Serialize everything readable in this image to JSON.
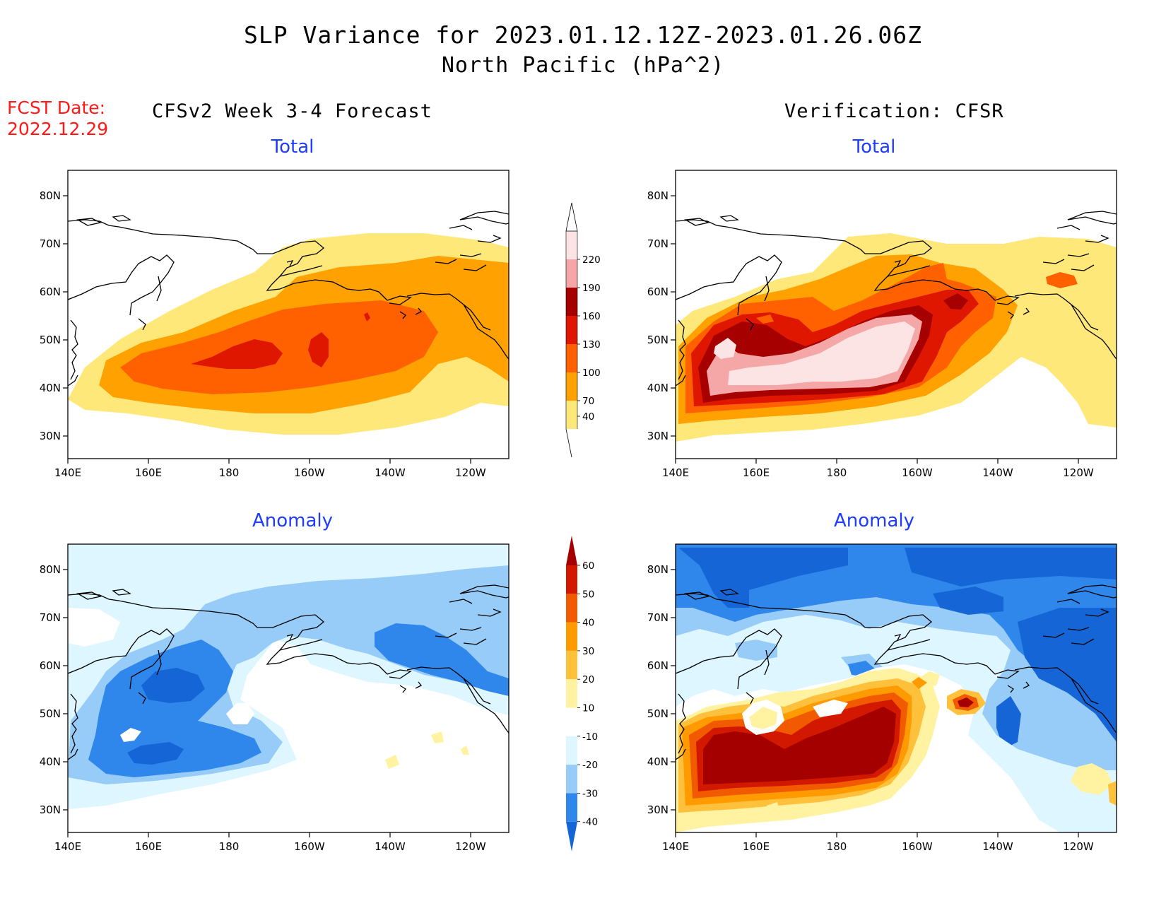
{
  "header": {
    "title": "SLP Variance for 2023.01.12.12Z-2023.01.26.06Z",
    "subtitle": "North Pacific (hPa^2)",
    "fcst_label_line1": "FCST Date:",
    "fcst_label_line2": "2022.12.29",
    "left_heading": "CFSv2 Week 3-4 Forecast",
    "right_heading": "Verification: CFSR"
  },
  "panels": [
    {
      "id": "forecast-total",
      "title": "Total"
    },
    {
      "id": "verification-total",
      "title": "Total"
    },
    {
      "id": "forecast-anomaly",
      "title": "Anomaly"
    },
    {
      "id": "verification-anomaly",
      "title": "Anomaly"
    }
  ],
  "axes": {
    "lon_labels": [
      "140E",
      "160E",
      "180",
      "160W",
      "140W",
      "120W"
    ],
    "lat_labels": [
      "80N",
      "70N",
      "60N",
      "50N",
      "40N",
      "30N"
    ]
  },
  "colorbars": {
    "total": {
      "levels": [
        "40",
        "70",
        "100",
        "130",
        "160",
        "190",
        "220"
      ],
      "colors": [
        "#ffe87a",
        "#ffa100",
        "#ff6100",
        "#e01700",
        "#a70000",
        "#f5a7a7",
        "#fde4e4"
      ]
    },
    "anomaly": {
      "levels": [
        "-40",
        "-30",
        "-20",
        "-10",
        "10",
        "20",
        "30",
        "40",
        "50",
        "60"
      ],
      "colors": [
        "#1565d6",
        "#2f86eb",
        "#96ccf7",
        "#def6ff",
        "#ffffff",
        "#fff3a2",
        "#ffc13b",
        "#ff9a00",
        "#f25a00",
        "#d21900",
        "#a40000"
      ]
    }
  },
  "colors": {
    "title_blue": "#1e3cff",
    "fcst_red": "#ff1a1a"
  }
}
